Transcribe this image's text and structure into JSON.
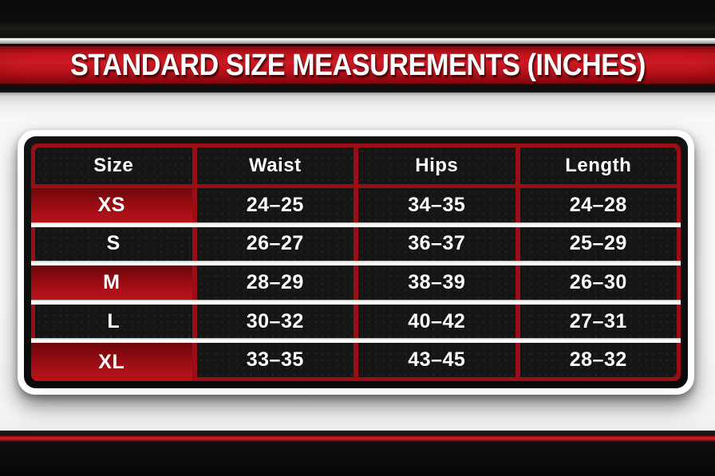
{
  "chart_data": {
    "type": "table",
    "title": "STANDARD SIZE MEASUREMENTS (INCHES)",
    "columns": [
      "Size",
      "Waist",
      "Hips",
      "Length"
    ],
    "rows": [
      [
        "XS",
        "24–25",
        "34–35",
        "24–28"
      ],
      [
        "S",
        "26–27",
        "36–37",
        "25–29"
      ],
      [
        "M",
        "28–29",
        "38–39",
        "26–30"
      ],
      [
        "L",
        "30–32",
        "40–42",
        "27–31"
      ],
      [
        "XL",
        "33–35",
        "43–45",
        "28–32"
      ]
    ],
    "highlighted_rows": [
      "XS",
      "M",
      "XL"
    ],
    "legend_position": "none",
    "grid": "red vertical lines, white horizontal separators"
  },
  "colors": {
    "banner_red": "#c8141d",
    "frame_red": "#9a0e15",
    "cell_black": "#151514",
    "highlight_red_top": "#6e070c",
    "highlight_red_bottom": "#b51219",
    "separator_white": "#ffffff",
    "page_background": "#f8f7f7",
    "outer_black": "#0b0b0a"
  }
}
